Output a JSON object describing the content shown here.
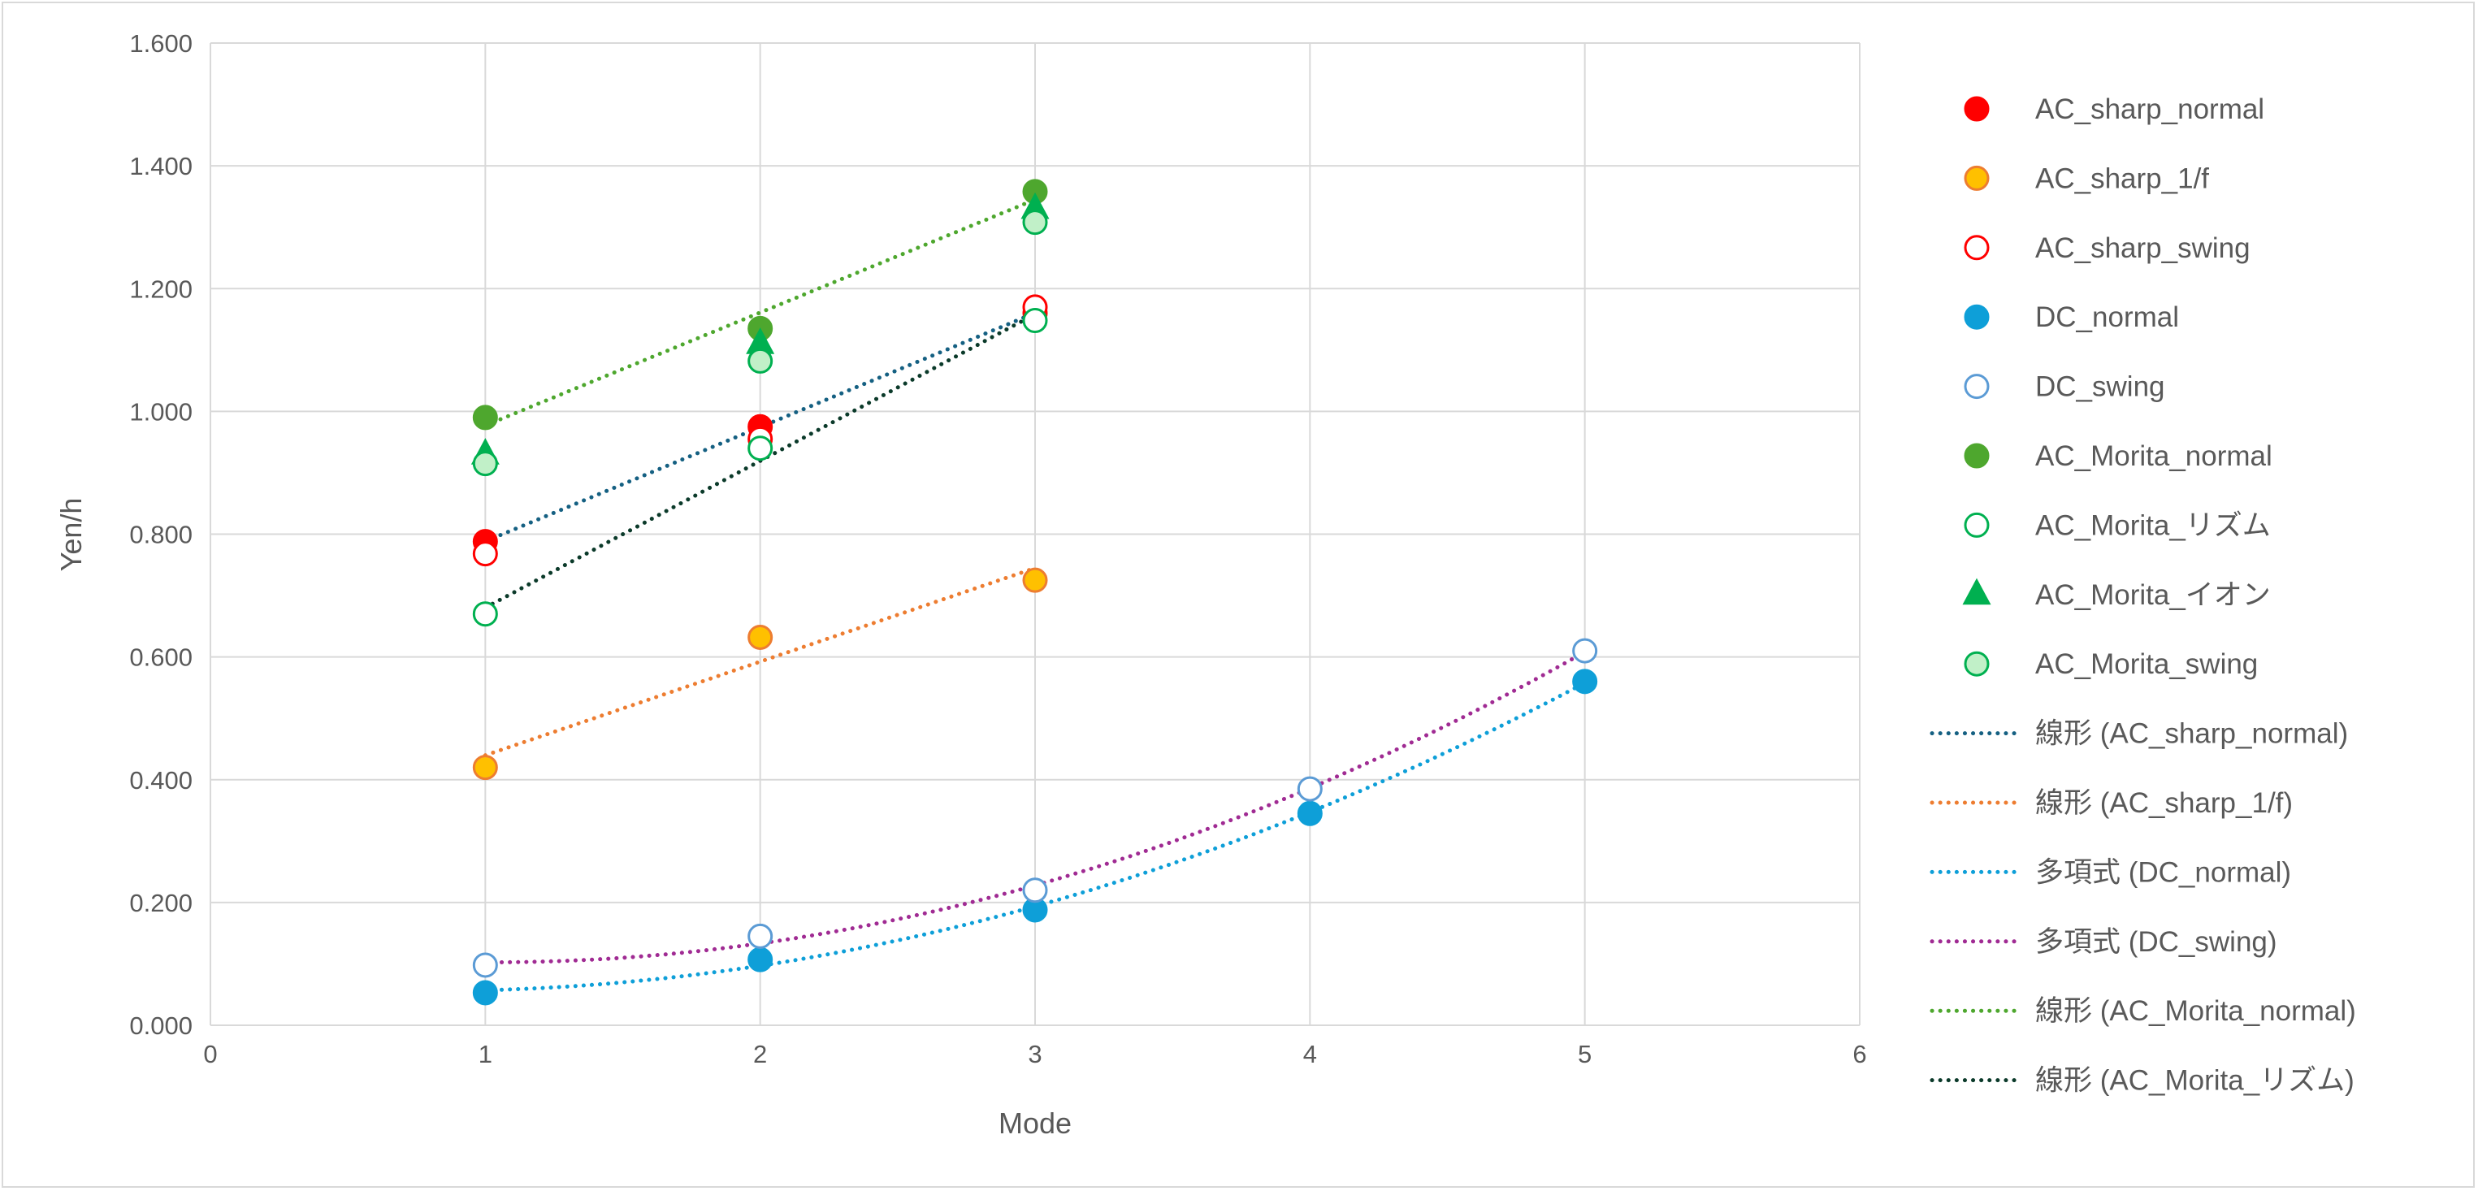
{
  "chart_data": {
    "type": "scatter",
    "title": "",
    "xlabel": "Mode",
    "ylabel": "Yen/h",
    "xlim": [
      0,
      6
    ],
    "ylim": [
      0,
      1.6
    ],
    "x_ticks": [
      "0",
      "1",
      "2",
      "3",
      "4",
      "5",
      "6"
    ],
    "y_ticks": [
      "0.000",
      "0.200",
      "0.400",
      "0.600",
      "0.800",
      "1.000",
      "1.200",
      "1.400",
      "1.600"
    ],
    "grid": true,
    "legend_position": "right",
    "series": [
      {
        "name": "AC_sharp_normal",
        "marker": "circle",
        "fill": "#ff0000",
        "stroke": "#ff0000",
        "x": [
          1,
          2,
          3
        ],
        "y": [
          0.788,
          0.975,
          1.16
        ]
      },
      {
        "name": "AC_sharp_1/f",
        "marker": "circle",
        "fill": "#ffc000",
        "stroke": "#ed7d31",
        "x": [
          1,
          2,
          3
        ],
        "y": [
          0.42,
          0.632,
          0.725
        ]
      },
      {
        "name": "AC_sharp_swing",
        "marker": "circle",
        "fill": "none",
        "stroke": "#ff0000",
        "x": [
          1,
          2,
          3
        ],
        "y": [
          0.768,
          0.955,
          1.17
        ]
      },
      {
        "name": "DC_normal",
        "marker": "circle",
        "fill": "#0e9fd8",
        "stroke": "#0e9fd8",
        "x": [
          1,
          2,
          3,
          4,
          5
        ],
        "y": [
          0.053,
          0.107,
          0.188,
          0.345,
          0.56
        ]
      },
      {
        "name": "DC_swing",
        "marker": "circle",
        "fill": "none",
        "stroke": "#5b9bd5",
        "x": [
          1,
          2,
          3,
          4,
          5
        ],
        "y": [
          0.098,
          0.145,
          0.22,
          0.385,
          0.61
        ]
      },
      {
        "name": "AC_Morita_normal",
        "marker": "circle",
        "fill": "#4ea72e",
        "stroke": "#4ea72e",
        "x": [
          1,
          2,
          3
        ],
        "y": [
          0.99,
          1.135,
          1.358
        ]
      },
      {
        "name": "AC_Morita_リズム",
        "marker": "circle",
        "fill": "none",
        "stroke": "#00b050",
        "x": [
          1,
          2,
          3
        ],
        "y": [
          0.67,
          0.94,
          1.148
        ]
      },
      {
        "name": "AC_Morita_イオン",
        "marker": "triangle",
        "fill": "#00b050",
        "stroke": "#00b050",
        "x": [
          1,
          2,
          3
        ],
        "y": [
          0.93,
          1.11,
          1.33
        ]
      },
      {
        "name": "AC_Morita_swing",
        "marker": "circle",
        "fill": "#c1f0c8",
        "stroke": "#00b050",
        "x": [
          1,
          2,
          3
        ],
        "y": [
          0.915,
          1.082,
          1.308
        ]
      }
    ],
    "trendlines": [
      {
        "name": "線形 (AC_sharp_normal)",
        "type": "linear",
        "series": 0,
        "color": "#156082"
      },
      {
        "name": "線形 (AC_sharp_1/f)",
        "type": "linear",
        "series": 1,
        "color": "#ed7d31"
      },
      {
        "name": "多項式 (DC_normal)",
        "type": "poly2",
        "series": 3,
        "color": "#0e9fd8"
      },
      {
        "name": "多項式 (DC_swing)",
        "type": "poly2",
        "series": 4,
        "color": "#a02b93"
      },
      {
        "name": "線形 (AC_Morita_normal)",
        "type": "linear",
        "series": 5,
        "color": "#4ea72e"
      },
      {
        "name": "線形 (AC_Morita_リズム)",
        "type": "linear",
        "series": 6,
        "color": "#0b3a2a"
      }
    ]
  }
}
